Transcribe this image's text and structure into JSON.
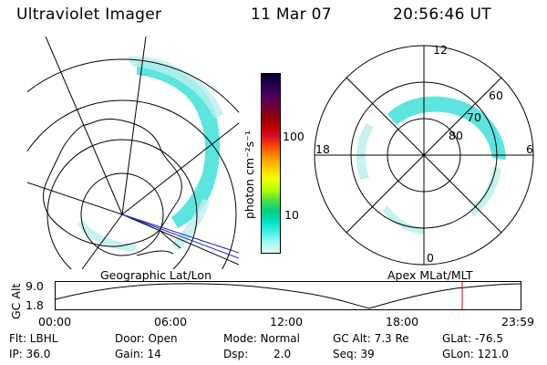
{
  "header": {
    "instrument": "Ultraviolet Imager",
    "date": "11 Mar 07",
    "time": "20:56:46 UT"
  },
  "geo_map": {
    "label": "Geographic Lat/Lon"
  },
  "colorbar": {
    "unit_label": "photon cm⁻²s⁻¹",
    "ticks": [
      "100",
      "10"
    ],
    "colors": [
      "#0a0028",
      "#23004a",
      "#4a0060",
      "#6e0038",
      "#8e0010",
      "#b80000",
      "#e01020",
      "#ff5000",
      "#ff9800",
      "#ffd000",
      "#f0ff00",
      "#b8ff00",
      "#50e040",
      "#00d080",
      "#00e0c0",
      "#40f0e8",
      "#a0f8f0",
      "#e0fcf8"
    ]
  },
  "polar_plot": {
    "label": "Apex MLat/MLT",
    "mlt_labels": [
      "12",
      "18",
      "6",
      "0"
    ],
    "mlat_labels": [
      "60",
      "70",
      "80"
    ]
  },
  "altitude_plot": {
    "ylabel": "GC Alt",
    "yticks": [
      "9.0",
      "1.8"
    ],
    "xticks": [
      "00:00",
      "06:00",
      "12:00",
      "18:00",
      "23:59"
    ],
    "marker_color": "#e00000"
  },
  "info": {
    "flt": "Flt: LBHL",
    "ip": "IP: 36.0",
    "door": "Door: Open",
    "gain": "Gain: 14",
    "mode": "Mode: Normal",
    "dsp_label": "Dsp:",
    "dsp_value": "2.0",
    "gc_alt": "GC Alt: 7.3 Re",
    "seq": "Seq: 39",
    "glat": "GLat: -76.5",
    "glon": "GLon: 121.0"
  },
  "accent_color": "#40e0d8"
}
